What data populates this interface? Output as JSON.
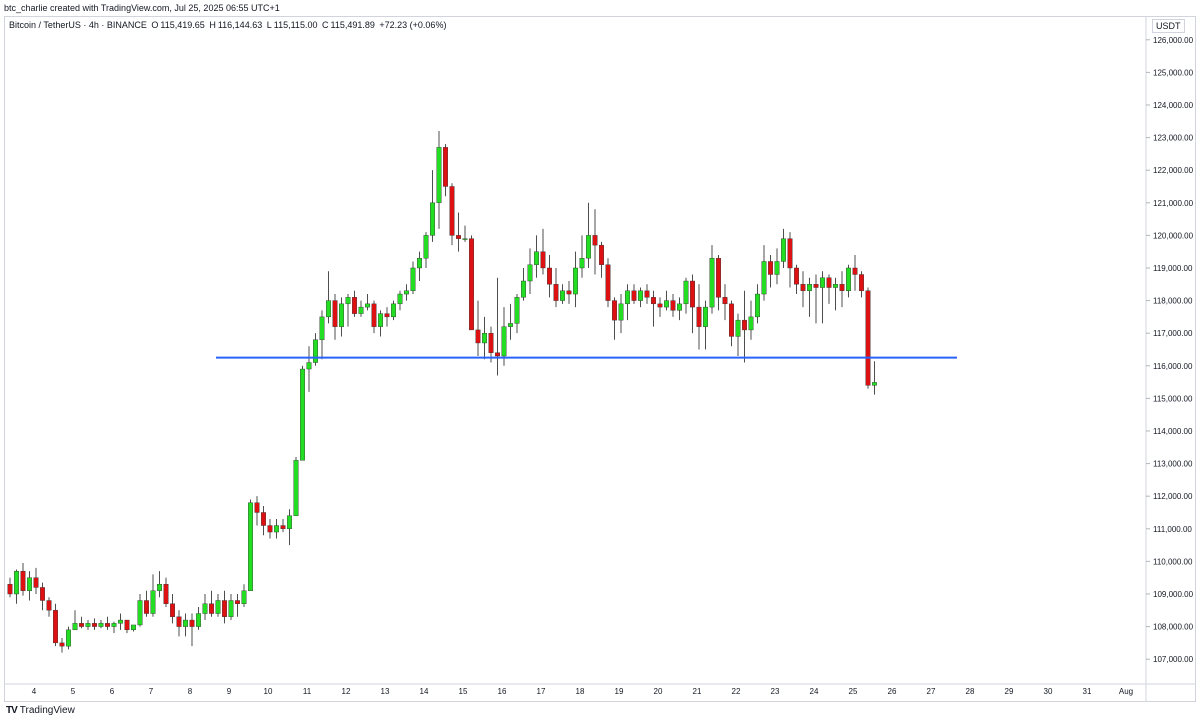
{
  "header": {
    "author_line": "btc_charlie created with TradingView.com, Jul 25, 2025 06:55 UTC+1"
  },
  "symbol": {
    "name": "Bitcoin / TetherUS · 4h · BINANCE",
    "o_label": "O",
    "o_value": "115,419.65",
    "h_label": "H",
    "h_value": "116,144.63",
    "l_label": "L",
    "l_value": "115,115.00",
    "c_label": "C",
    "c_value": "115,491.89",
    "change": "+72.23 (+0.06%)"
  },
  "currency": "USDT",
  "footer": {
    "brand": "TradingView",
    "logo_text": "TV"
  },
  "colors": {
    "up": "#22dd22",
    "down": "#dd1111",
    "wick": "#222222",
    "level_line": "#2962ff"
  },
  "chart_data": {
    "type": "candlestick",
    "ylim": [
      106300,
      126300
    ],
    "y_ticks": [
      "107,000.00",
      "108,000.00",
      "109,000.00",
      "110,000.00",
      "111,000.00",
      "112,000.00",
      "113,000.00",
      "114,000.00",
      "115,000.00",
      "116,000.00",
      "117,000.00",
      "118,000.00",
      "119,000.00",
      "120,000.00",
      "121,000.00",
      "122,000.00",
      "123,000.00",
      "124,000.00",
      "125,000.00",
      "126,000.00"
    ],
    "x_ticks": [
      "4",
      "5",
      "6",
      "7",
      "8",
      "9",
      "10",
      "11",
      "12",
      "13",
      "14",
      "15",
      "16",
      "17",
      "18",
      "19",
      "20",
      "21",
      "22",
      "23",
      "24",
      "25",
      "26",
      "27",
      "28",
      "29",
      "30",
      "31",
      "Aug"
    ],
    "horizontal_level": {
      "value": 116250
    },
    "candles": [
      [
        109300,
        109500,
        108900,
        109000
      ],
      [
        109000,
        109750,
        108700,
        109700
      ],
      [
        109700,
        109950,
        108950,
        109100
      ],
      [
        109100,
        109700,
        108800,
        109500
      ],
      [
        109500,
        109800,
        109000,
        109200
      ],
      [
        109200,
        109350,
        108500,
        108800
      ],
      [
        108800,
        108900,
        108300,
        108500
      ],
      [
        108500,
        108700,
        107400,
        107500
      ],
      [
        107500,
        107650,
        107200,
        107400
      ],
      [
        107400,
        108000,
        107300,
        107900
      ],
      [
        107900,
        108500,
        107900,
        108100
      ],
      [
        108100,
        108300,
        107950,
        108000
      ],
      [
        108000,
        108200,
        107900,
        108100
      ],
      [
        108100,
        108250,
        107900,
        108000
      ],
      [
        108000,
        108200,
        107950,
        108100
      ],
      [
        108100,
        108300,
        107900,
        108000
      ],
      [
        108000,
        108150,
        107800,
        108100
      ],
      [
        108100,
        108400,
        107900,
        108200
      ],
      [
        108200,
        108200,
        107800,
        107900
      ],
      [
        107900,
        108000,
        107850,
        108050
      ],
      [
        108050,
        109000,
        108000,
        108800
      ],
      [
        108800,
        109100,
        108300,
        108400
      ],
      [
        108400,
        109600,
        108300,
        109100
      ],
      [
        109100,
        109700,
        108900,
        109300
      ],
      [
        109300,
        109500,
        108600,
        108700
      ],
      [
        108700,
        109000,
        108100,
        108300
      ],
      [
        108300,
        108500,
        107700,
        108000
      ],
      [
        108000,
        108400,
        107700,
        108200
      ],
      [
        108200,
        108400,
        107400,
        108000
      ],
      [
        108000,
        108600,
        107900,
        108400
      ],
      [
        108400,
        109000,
        108200,
        108700
      ],
      [
        108700,
        109100,
        108300,
        108400
      ],
      [
        108400,
        109000,
        108300,
        108800
      ],
      [
        108800,
        109100,
        108100,
        108300
      ],
      [
        108300,
        109000,
        108200,
        108800
      ],
      [
        108800,
        109000,
        108300,
        108700
      ],
      [
        108700,
        109300,
        108600,
        109100
      ],
      [
        109100,
        111900,
        109100,
        111800
      ],
      [
        111800,
        112000,
        111100,
        111500
      ],
      [
        111500,
        111700,
        110800,
        111100
      ],
      [
        111100,
        111300,
        110700,
        110900
      ],
      [
        110900,
        111300,
        110700,
        111100
      ],
      [
        111100,
        111300,
        110900,
        111000
      ],
      [
        111000,
        111600,
        110500,
        111400
      ],
      [
        111400,
        113200,
        111400,
        113100
      ],
      [
        113100,
        116000,
        113100,
        115900
      ],
      [
        115900,
        116600,
        115200,
        116100
      ],
      [
        116100,
        117000,
        116000,
        116800
      ],
      [
        116800,
        117700,
        116200,
        117500
      ],
      [
        117500,
        118900,
        117300,
        118000
      ],
      [
        118000,
        118200,
        116800,
        117200
      ],
      [
        117200,
        118100,
        116900,
        117900
      ],
      [
        117900,
        118200,
        117200,
        118100
      ],
      [
        118100,
        118300,
        117500,
        117600
      ],
      [
        117600,
        118000,
        117500,
        117800
      ],
      [
        117800,
        118200,
        117700,
        117900
      ],
      [
        117900,
        118000,
        117000,
        117200
      ],
      [
        117200,
        117700,
        116900,
        117600
      ],
      [
        117600,
        117800,
        117200,
        117500
      ],
      [
        117500,
        118000,
        117400,
        117900
      ],
      [
        117900,
        118300,
        117700,
        118200
      ],
      [
        118200,
        118500,
        118000,
        118300
      ],
      [
        118300,
        119200,
        118200,
        119000
      ],
      [
        119000,
        119500,
        118600,
        119300
      ],
      [
        119300,
        120100,
        119000,
        120000
      ],
      [
        120000,
        122000,
        119800,
        121000
      ],
      [
        121000,
        123200,
        120200,
        122700
      ],
      [
        122700,
        122800,
        121200,
        121500
      ],
      [
        121500,
        121600,
        119700,
        120000
      ],
      [
        120000,
        120700,
        119500,
        119900
      ],
      [
        119900,
        120300,
        119800,
        119900
      ],
      [
        119900,
        120000,
        117200,
        117100
      ],
      [
        117100,
        118000,
        116300,
        116700
      ],
      [
        116700,
        117500,
        116200,
        117000
      ],
      [
        117000,
        117200,
        116100,
        116400
      ],
      [
        116400,
        118700,
        115700,
        116300
      ],
      [
        116300,
        117800,
        116000,
        117200
      ],
      [
        117200,
        117900,
        116800,
        117300
      ],
      [
        117300,
        118200,
        117000,
        118100
      ],
      [
        118100,
        119000,
        118000,
        118600
      ],
      [
        118600,
        119600,
        118200,
        119100
      ],
      [
        119100,
        120000,
        118700,
        119500
      ],
      [
        119500,
        120200,
        118800,
        119000
      ],
      [
        119000,
        119400,
        118100,
        118500
      ],
      [
        118500,
        119000,
        117800,
        118000
      ],
      [
        118000,
        118500,
        117900,
        118300
      ],
      [
        118300,
        118600,
        117900,
        118200
      ],
      [
        118200,
        119500,
        117800,
        119000
      ],
      [
        119000,
        120000,
        118700,
        119300
      ],
      [
        119300,
        121000,
        119000,
        120000
      ],
      [
        120000,
        120800,
        118800,
        119700
      ],
      [
        119700,
        119800,
        118700,
        119100
      ],
      [
        119100,
        119300,
        117800,
        118000
      ],
      [
        118000,
        118100,
        116800,
        117400
      ],
      [
        117400,
        118200,
        117000,
        117900
      ],
      [
        117900,
        118500,
        117400,
        118300
      ],
      [
        118300,
        118500,
        117900,
        118000
      ],
      [
        118000,
        118400,
        117800,
        118300
      ],
      [
        118300,
        118500,
        117900,
        118100
      ],
      [
        118100,
        118300,
        117200,
        117900
      ],
      [
        117900,
        118100,
        117500,
        117800
      ],
      [
        117800,
        118300,
        117700,
        118000
      ],
      [
        118000,
        118200,
        117500,
        117700
      ],
      [
        117700,
        118100,
        117400,
        117900
      ],
      [
        117900,
        118700,
        117600,
        118600
      ],
      [
        118600,
        118800,
        117000,
        117800
      ],
      [
        117800,
        118500,
        116500,
        117200
      ],
      [
        117200,
        118000,
        116500,
        117800
      ],
      [
        117800,
        119700,
        117600,
        119300
      ],
      [
        119300,
        119400,
        117700,
        118100
      ],
      [
        118100,
        118500,
        117400,
        117900
      ],
      [
        117900,
        118000,
        116600,
        116900
      ],
      [
        116900,
        117600,
        116300,
        117400
      ],
      [
        117400,
        118300,
        116100,
        117100
      ],
      [
        117100,
        118000,
        116800,
        117500
      ],
      [
        117500,
        118500,
        117300,
        118200
      ],
      [
        118200,
        119700,
        118000,
        119200
      ],
      [
        119200,
        119400,
        118400,
        118800
      ],
      [
        118800,
        119600,
        118500,
        119200
      ],
      [
        119200,
        120200,
        119000,
        119900
      ],
      [
        119900,
        120100,
        118400,
        119000
      ],
      [
        119000,
        119100,
        118200,
        118500
      ],
      [
        118500,
        118900,
        117800,
        118300
      ],
      [
        118300,
        118700,
        117500,
        118500
      ],
      [
        118500,
        118800,
        117300,
        118400
      ],
      [
        118400,
        118900,
        117300,
        118700
      ],
      [
        118700,
        118800,
        117900,
        118400
      ],
      [
        118400,
        118700,
        117700,
        118500
      ],
      [
        118500,
        118900,
        117800,
        118300
      ],
      [
        118300,
        119100,
        118100,
        119000
      ],
      [
        119000,
        119400,
        118300,
        118800
      ],
      [
        118800,
        118900,
        118100,
        118300
      ],
      [
        118300,
        118400,
        115300,
        115400
      ],
      [
        115400,
        116140,
        115115,
        115490
      ]
    ]
  }
}
